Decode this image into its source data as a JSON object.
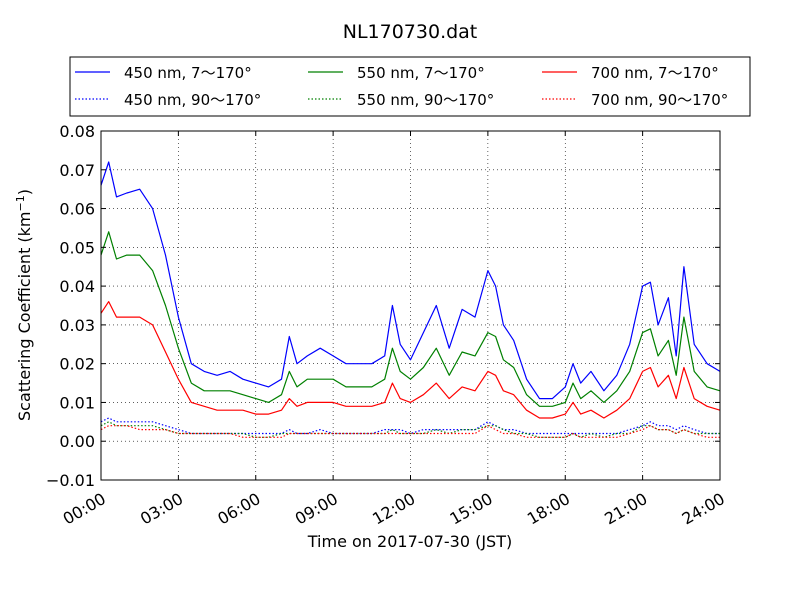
{
  "chart_data": {
    "type": "line",
    "title": "NL170730.dat",
    "xlabel": "Time on 2017-07-30 (JST)",
    "ylabel": "Scattering Coefficient (km",
    "ylabel_sup": "−1",
    "ylabel_tail": ")",
    "xlim": [
      "00:00",
      "24:00"
    ],
    "ylim": [
      -0.01,
      0.08
    ],
    "grid": true,
    "legend_position": "top",
    "x_ticks": [
      "00:00",
      "03:00",
      "06:00",
      "09:00",
      "12:00",
      "15:00",
      "18:00",
      "21:00",
      "24:00"
    ],
    "y_ticks": [
      "−0.01",
      "0.00",
      "0.01",
      "0.02",
      "0.03",
      "0.04",
      "0.05",
      "0.06",
      "0.07",
      "0.08"
    ],
    "x_hours": [
      0,
      0.3,
      0.6,
      1,
      1.5,
      2,
      2.5,
      3,
      3.5,
      4,
      4.5,
      5,
      5.5,
      6,
      6.5,
      7,
      7.3,
      7.6,
      8,
      8.5,
      9,
      9.5,
      10,
      10.5,
      11,
      11.3,
      11.6,
      12,
      12.5,
      13,
      13.5,
      14,
      14.5,
      15,
      15.3,
      15.6,
      16,
      16.5,
      17,
      17.5,
      18,
      18.3,
      18.6,
      19,
      19.5,
      20,
      20.5,
      21,
      21.3,
      21.6,
      22,
      22.3,
      22.6,
      23,
      23.5,
      24
    ],
    "series": [
      {
        "name": "450 nm, 7～170°",
        "color": "#0000ff",
        "style": "solid",
        "values": [
          0.066,
          0.072,
          0.063,
          0.064,
          0.065,
          0.06,
          0.048,
          0.032,
          0.02,
          0.018,
          0.017,
          0.018,
          0.016,
          0.015,
          0.014,
          0.016,
          0.027,
          0.02,
          0.022,
          0.024,
          0.022,
          0.02,
          0.02,
          0.02,
          0.022,
          0.035,
          0.025,
          0.021,
          0.028,
          0.035,
          0.024,
          0.034,
          0.032,
          0.044,
          0.04,
          0.03,
          0.026,
          0.016,
          0.011,
          0.011,
          0.014,
          0.02,
          0.015,
          0.018,
          0.013,
          0.017,
          0.025,
          0.04,
          0.041,
          0.03,
          0.037,
          0.022,
          0.045,
          0.025,
          0.02,
          0.018
        ]
      },
      {
        "name": "550 nm, 7～170°",
        "color": "#008000",
        "style": "solid",
        "values": [
          0.048,
          0.054,
          0.047,
          0.048,
          0.048,
          0.044,
          0.035,
          0.024,
          0.015,
          0.013,
          0.013,
          0.013,
          0.012,
          0.011,
          0.01,
          0.012,
          0.018,
          0.014,
          0.016,
          0.016,
          0.016,
          0.014,
          0.014,
          0.014,
          0.016,
          0.024,
          0.018,
          0.016,
          0.019,
          0.024,
          0.017,
          0.023,
          0.022,
          0.028,
          0.027,
          0.021,
          0.019,
          0.012,
          0.009,
          0.009,
          0.01,
          0.015,
          0.011,
          0.013,
          0.01,
          0.013,
          0.018,
          0.028,
          0.029,
          0.022,
          0.026,
          0.017,
          0.032,
          0.018,
          0.014,
          0.013
        ]
      },
      {
        "name": "700 nm, 7～170°",
        "color": "#ff0000",
        "style": "solid",
        "values": [
          0.033,
          0.036,
          0.032,
          0.032,
          0.032,
          0.03,
          0.023,
          0.016,
          0.01,
          0.009,
          0.008,
          0.008,
          0.008,
          0.007,
          0.007,
          0.008,
          0.011,
          0.009,
          0.01,
          0.01,
          0.01,
          0.009,
          0.009,
          0.009,
          0.01,
          0.015,
          0.011,
          0.01,
          0.012,
          0.015,
          0.011,
          0.014,
          0.013,
          0.018,
          0.017,
          0.013,
          0.012,
          0.008,
          0.006,
          0.006,
          0.007,
          0.01,
          0.007,
          0.008,
          0.006,
          0.008,
          0.011,
          0.018,
          0.019,
          0.014,
          0.017,
          0.011,
          0.019,
          0.011,
          0.009,
          0.008
        ]
      },
      {
        "name": "450 nm, 90～170°",
        "color": "#0000ff",
        "style": "dotted",
        "values": [
          0.005,
          0.006,
          0.005,
          0.005,
          0.005,
          0.005,
          0.004,
          0.003,
          0.002,
          0.002,
          0.002,
          0.002,
          0.002,
          0.002,
          0.002,
          0.002,
          0.003,
          0.002,
          0.002,
          0.003,
          0.002,
          0.002,
          0.002,
          0.002,
          0.003,
          0.003,
          0.003,
          0.002,
          0.003,
          0.003,
          0.003,
          0.003,
          0.003,
          0.005,
          0.004,
          0.003,
          0.003,
          0.002,
          0.002,
          0.002,
          0.002,
          0.002,
          0.002,
          0.002,
          0.002,
          0.002,
          0.003,
          0.004,
          0.005,
          0.004,
          0.004,
          0.003,
          0.004,
          0.003,
          0.002,
          0.002
        ]
      },
      {
        "name": "550 nm, 90～170°",
        "color": "#008000",
        "style": "dotted",
        "values": [
          0.004,
          0.005,
          0.004,
          0.004,
          0.004,
          0.004,
          0.003,
          0.002,
          0.002,
          0.002,
          0.002,
          0.002,
          0.002,
          0.001,
          0.001,
          0.002,
          0.002,
          0.002,
          0.002,
          0.002,
          0.002,
          0.002,
          0.002,
          0.002,
          0.002,
          0.003,
          0.002,
          0.002,
          0.002,
          0.003,
          0.002,
          0.003,
          0.003,
          0.004,
          0.004,
          0.003,
          0.002,
          0.002,
          0.001,
          0.001,
          0.001,
          0.002,
          0.001,
          0.002,
          0.001,
          0.002,
          0.002,
          0.004,
          0.004,
          0.003,
          0.003,
          0.002,
          0.003,
          0.002,
          0.002,
          0.002
        ]
      },
      {
        "name": "700 nm, 90～170°",
        "color": "#ff0000",
        "style": "dotted",
        "values": [
          0.003,
          0.004,
          0.004,
          0.004,
          0.003,
          0.003,
          0.003,
          0.002,
          0.002,
          0.002,
          0.002,
          0.002,
          0.001,
          0.001,
          0.001,
          0.001,
          0.002,
          0.002,
          0.002,
          0.002,
          0.002,
          0.002,
          0.002,
          0.002,
          0.002,
          0.002,
          0.002,
          0.002,
          0.002,
          0.002,
          0.002,
          0.002,
          0.002,
          0.004,
          0.003,
          0.002,
          0.002,
          0.001,
          0.001,
          0.001,
          0.001,
          0.002,
          0.001,
          0.001,
          0.001,
          0.001,
          0.002,
          0.003,
          0.004,
          0.003,
          0.003,
          0.002,
          0.003,
          0.002,
          0.001,
          0.001
        ]
      }
    ],
    "legend_entries": [
      {
        "label": "450 nm, 7～170°",
        "series": 0
      },
      {
        "label": "550 nm, 7～170°",
        "series": 1
      },
      {
        "label": "700 nm, 7～170°",
        "series": 2
      },
      {
        "label": "450 nm, 90～170°",
        "series": 3
      },
      {
        "label": "550 nm, 90～170°",
        "series": 4
      },
      {
        "label": "700 nm, 90～170°",
        "series": 5
      }
    ]
  }
}
